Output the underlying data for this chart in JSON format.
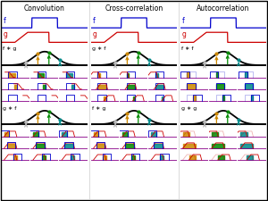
{
  "col_titles": [
    "Convolution",
    "Cross-correlation",
    "Autocorrelation"
  ],
  "labels_r1": [
    "f ∗ g",
    "g ∗ f",
    "f ∗ f"
  ],
  "labels_r2": [
    "g ∗ f",
    "f ∗ g",
    "g ∗ g"
  ],
  "bg_color": "#ffffff",
  "f_color": "#0000cc",
  "g_color": "#cc0000",
  "result_color": "#000000",
  "purple": "#880088",
  "orange": "#cc8800",
  "green": "#008800",
  "teal": "#008888",
  "lgray": "#bbbbbb"
}
